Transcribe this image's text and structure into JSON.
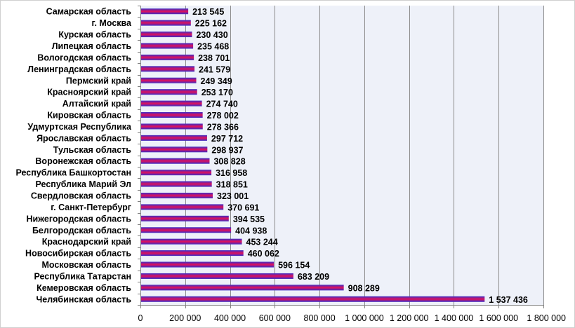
{
  "chart_data": {
    "type": "bar",
    "orientation": "horizontal",
    "categories": [
      "Самарская область",
      "г. Москва",
      "Курская область",
      "Липецкая область",
      "Вологодская область",
      "Ленинградская область",
      "Пермский край",
      "Красноярский край",
      "Алтайский край",
      "Кировская область",
      "Удмуртская Республика",
      "Ярославская область",
      "Тульская область",
      "Воронежская область",
      "Республика Башкортостан",
      "Республика Марий Эл",
      "Свердловская область",
      "г. Санкт-Петербург",
      "Нижегородская область",
      "Белгородская область",
      "Краснодарский край",
      "Новосибирская область",
      "Московская область",
      "Республика Татарстан",
      "Кемеровская область",
      "Челябинская область"
    ],
    "values": [
      213545,
      225162,
      230430,
      235468,
      238701,
      241579,
      249349,
      253170,
      274740,
      278002,
      278366,
      297712,
      298937,
      308828,
      316958,
      318851,
      323001,
      370691,
      394535,
      404938,
      453244,
      460062,
      596154,
      683209,
      908289,
      1537436
    ],
    "value_labels": [
      "213 545",
      "225 162",
      "230 430",
      "235 468",
      "238 701",
      "241 579",
      "249 349",
      "253 170",
      "274 740",
      "278 002",
      "278 366",
      "297 712",
      "298 937",
      "308 828",
      "316 958",
      "318 851",
      "323 001",
      "370 691",
      "394 535",
      "404 938",
      "453 244",
      "460 062",
      "596 154",
      "683 209",
      "908 289",
      "1 537 436"
    ],
    "xlim": [
      0,
      1800000
    ],
    "x_ticks": [
      0,
      200000,
      400000,
      600000,
      800000,
      1000000,
      1200000,
      1400000,
      1600000,
      1800000
    ],
    "x_tick_labels": [
      "0",
      "200 000",
      "400 000",
      "600 000",
      "800 000",
      "1 000 000",
      "1 200 000",
      "1 400 000",
      "1 600 000",
      "1 800 000"
    ],
    "title": "",
    "xlabel": "",
    "ylabel": "",
    "grid": "vertical",
    "legend": "none",
    "colors": {
      "bar_top": "#3a2dc8",
      "bar_bottom": "#e0105a",
      "plot_background": "#eef1f9",
      "grid": "#8c8c8c"
    }
  }
}
